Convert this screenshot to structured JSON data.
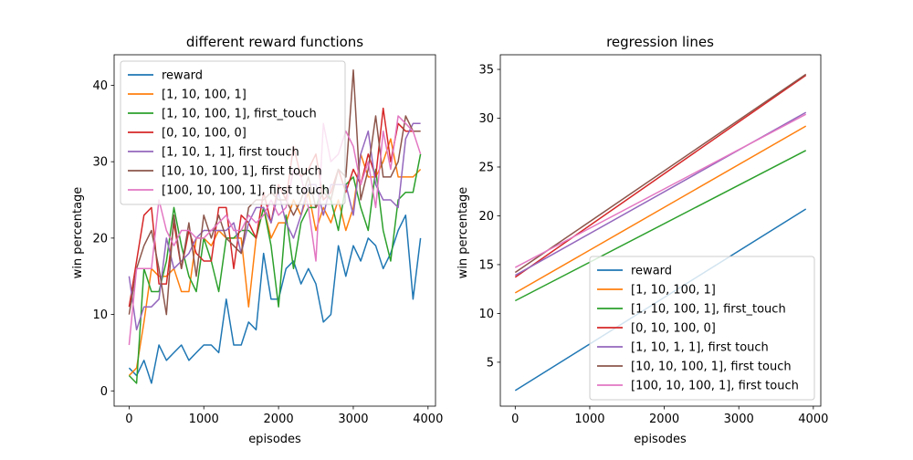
{
  "colors": [
    "#1f77b4",
    "#ff7f0e",
    "#2ca02c",
    "#d62728",
    "#9467bd",
    "#8c564b",
    "#e377c2"
  ],
  "chart_data": [
    {
      "type": "line",
      "title": "different reward functions",
      "xlabel": "episodes",
      "ylabel": "win percentage",
      "xlim": [
        -200,
        4100
      ],
      "ylim": [
        -2,
        44
      ],
      "xticks": [
        0,
        1000,
        2000,
        3000,
        4000
      ],
      "yticks": [
        0,
        10,
        20,
        30,
        40
      ],
      "grid": false,
      "legend_position": "top-left",
      "x": [
        0,
        100,
        200,
        300,
        400,
        500,
        600,
        700,
        800,
        900,
        1000,
        1100,
        1200,
        1300,
        1400,
        1500,
        1600,
        1700,
        1800,
        1900,
        2000,
        2100,
        2200,
        2300,
        2400,
        2500,
        2600,
        2700,
        2800,
        2900,
        3000,
        3100,
        3200,
        3300,
        3400,
        3500,
        3600,
        3700,
        3800,
        3900
      ],
      "series": [
        {
          "name": "reward",
          "values": [
            3,
            2,
            4,
            1,
            6,
            4,
            5,
            6,
            4,
            5,
            6,
            6,
            5,
            12,
            6,
            6,
            9,
            8,
            18,
            12,
            12,
            16,
            17,
            14,
            16,
            14,
            9,
            10,
            19,
            15,
            19,
            17,
            20,
            19,
            16,
            18,
            21,
            23,
            12,
            20
          ]
        },
        {
          "name": "[1, 10, 100, 1]",
          "values": [
            2,
            3,
            9,
            16,
            15,
            15,
            16,
            13,
            13,
            20,
            20,
            19,
            21,
            20,
            20,
            20,
            11,
            20,
            24,
            20,
            22,
            22,
            25,
            23,
            26,
            21,
            24,
            22,
            25,
            21,
            24,
            31,
            28,
            28,
            30,
            33,
            28,
            28,
            28,
            29
          ]
        },
        {
          "name": "[1, 10, 100, 1], first_touch",
          "values": [
            2,
            1,
            16,
            13,
            13,
            17,
            24,
            19,
            15,
            13,
            20,
            17,
            13,
            20,
            20,
            21,
            21,
            20,
            24,
            19,
            11,
            23,
            16,
            22,
            24,
            24,
            27,
            25,
            21,
            27,
            28,
            24,
            21,
            29,
            21,
            17,
            25,
            26,
            26,
            31
          ]
        },
        {
          "name": "[0, 10, 100, 0]",
          "values": [
            11,
            17,
            23,
            24,
            14,
            14,
            22,
            16,
            21,
            18,
            17,
            17,
            24,
            24,
            16,
            23,
            22,
            20,
            26,
            22,
            27,
            25,
            32,
            28,
            29,
            31,
            25,
            26,
            29,
            26,
            29,
            27,
            31,
            28,
            37,
            30,
            35,
            34,
            34,
            34
          ]
        },
        {
          "name": "[1, 10, 1, 1], first touch",
          "values": [
            15,
            8,
            11,
            11,
            12,
            20,
            16,
            17,
            18,
            20,
            21,
            21,
            21,
            21,
            22,
            18,
            22,
            24,
            24,
            22,
            26,
            22,
            20,
            23,
            27,
            27,
            23,
            27,
            27,
            27,
            23,
            31,
            34,
            27,
            25,
            25,
            24,
            33,
            35,
            35
          ]
        },
        {
          "name": "[10, 10, 100, 1], first touch",
          "values": [
            10,
            16,
            19,
            21,
            16,
            10,
            23,
            16,
            22,
            15,
            23,
            20,
            23,
            20,
            19,
            18,
            24,
            25,
            25,
            26,
            25,
            25,
            23,
            25,
            28,
            24,
            26,
            25,
            29,
            28,
            42,
            25,
            29,
            36,
            28,
            28,
            30,
            36,
            34,
            34
          ]
        },
        {
          "name": "[100, 10, 100, 1], first touch",
          "values": [
            6,
            16,
            16,
            16,
            25,
            21,
            19,
            21,
            21,
            20,
            20,
            21,
            22,
            23,
            21,
            21,
            23,
            22,
            23,
            25,
            23,
            24,
            29,
            28,
            24,
            17,
            35,
            30,
            31,
            34,
            32,
            27,
            30,
            24,
            34,
            29,
            36,
            35,
            34,
            31
          ]
        }
      ]
    },
    {
      "type": "line",
      "title": "regression lines",
      "xlabel": "episodes",
      "ylabel": "win percentage",
      "xlim": [
        -200,
        4100
      ],
      "ylim": [
        0.5,
        36.5
      ],
      "xticks": [
        0,
        1000,
        2000,
        3000,
        4000
      ],
      "yticks": [
        5,
        10,
        15,
        20,
        25,
        30,
        35
      ],
      "grid": false,
      "legend_position": "lower-right",
      "x": [
        0,
        3900
      ],
      "series": [
        {
          "name": "reward",
          "values": [
            2.1,
            20.7
          ]
        },
        {
          "name": "[1, 10, 100, 1]",
          "values": [
            12.1,
            29.2
          ]
        },
        {
          "name": "[1, 10, 100, 1], first_touch",
          "values": [
            11.3,
            26.7
          ]
        },
        {
          "name": "[0, 10, 100, 0]",
          "values": [
            13.7,
            34.4
          ]
        },
        {
          "name": "[1, 10, 1, 1], first touch",
          "values": [
            13.9,
            30.6
          ]
        },
        {
          "name": "[10, 10, 100, 1], first touch",
          "values": [
            14.2,
            34.5
          ]
        },
        {
          "name": "[100, 10, 100, 1], first touch",
          "values": [
            14.7,
            30.4
          ]
        }
      ]
    }
  ]
}
